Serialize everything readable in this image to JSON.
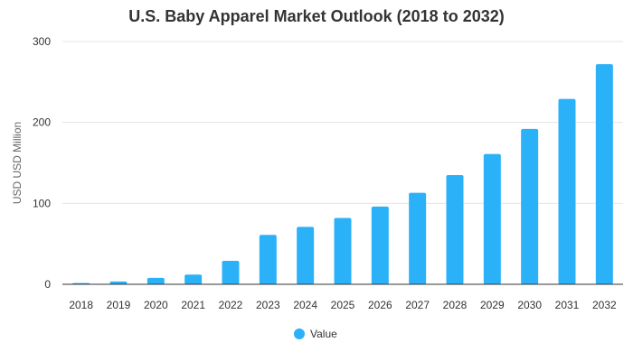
{
  "chart_data": {
    "type": "bar",
    "title": "U.S. Baby Apparel Market Outlook (2018 to 2032)",
    "xlabel": "",
    "ylabel": "USD USD Million",
    "categories": [
      "2018",
      "2019",
      "2020",
      "2021",
      "2022",
      "2023",
      "2024",
      "2025",
      "2026",
      "2027",
      "2028",
      "2029",
      "2030",
      "2031",
      "2032"
    ],
    "series": [
      {
        "name": "Value",
        "values": [
          1.5,
          3.5,
          8,
          12,
          29,
          61,
          71,
          82,
          96,
          113,
          135,
          161,
          192,
          229,
          272
        ],
        "color": "#2bb1f8"
      }
    ],
    "ylim": [
      0,
      300
    ],
    "yticks": [
      0,
      100,
      200,
      300
    ],
    "grid": true,
    "legend": "bottom-center"
  }
}
